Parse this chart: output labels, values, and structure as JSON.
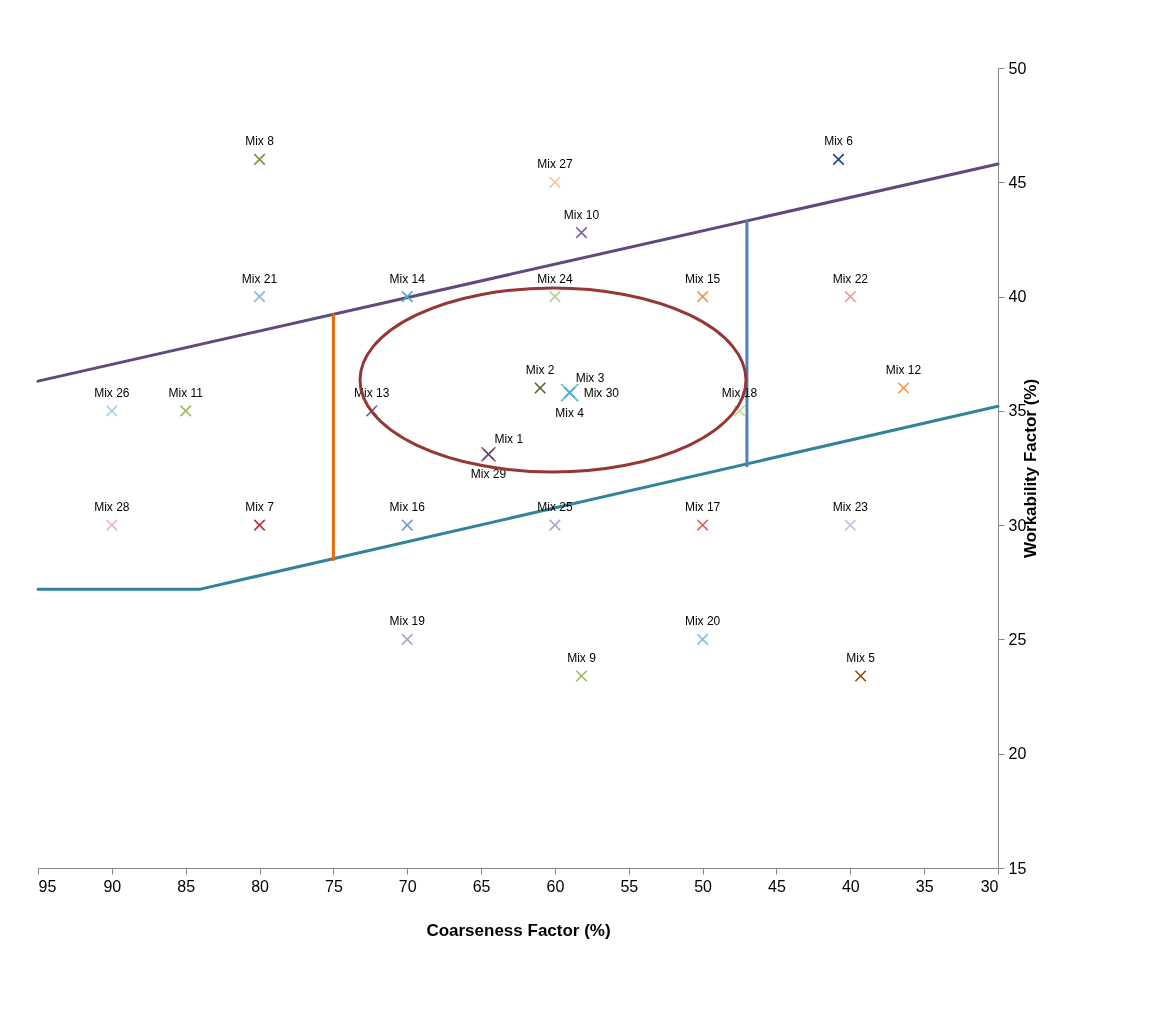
{
  "chart_data": {
    "type": "scatter",
    "xlabel": "Coarseness Factor (%)",
    "ylabel": "Workability Factor (%)",
    "xlim": [
      95,
      30
    ],
    "xticks": [
      95,
      90,
      85,
      80,
      75,
      70,
      65,
      60,
      55,
      50,
      45,
      40,
      35,
      30
    ],
    "ylim": [
      15,
      50
    ],
    "yticks": [
      15,
      20,
      25,
      30,
      35,
      40,
      45,
      50
    ],
    "grid": false,
    "legend": false,
    "marker": "cross",
    "series": [
      {
        "type": "line",
        "marker": "none",
        "color": "#604a7b",
        "x": [
          95,
          30
        ],
        "values": [
          36.3,
          45.8
        ]
      },
      {
        "type": "line",
        "marker": "none",
        "color": "#31849b",
        "x": [
          95,
          84,
          30
        ],
        "values": [
          27.2,
          27.2,
          35.2
        ]
      },
      {
        "type": "line",
        "marker": "none",
        "color": "#e46c0a",
        "x": [
          75,
          75
        ],
        "values": [
          28.5,
          39.2
        ]
      },
      {
        "type": "line",
        "marker": "none",
        "color": "#4f81bd",
        "x": [
          47,
          47
        ],
        "values": [
          32.6,
          43.3
        ]
      },
      {
        "name": "Mix 1",
        "color": "#604a7b",
        "x": [
          64.5
        ],
        "values": [
          33.1
        ]
      },
      {
        "name": "Mix 2",
        "color": "#4f6228",
        "x": [
          61
        ],
        "values": [
          36
        ]
      },
      {
        "name": "Mix 3",
        "color": "#4bacc6",
        "x": [
          59
        ],
        "values": [
          35.8
        ]
      },
      {
        "name": "Mix 4",
        "color": "#93cddd",
        "x": [
          59
        ],
        "values": [
          35.8
        ]
      },
      {
        "name": "Mix 5",
        "color": "#984807",
        "x": [
          39.3
        ],
        "values": [
          23.4
        ]
      },
      {
        "name": "Mix 6",
        "color": "#1f497d",
        "x": [
          40.8
        ],
        "values": [
          46
        ]
      },
      {
        "name": "Mix 7",
        "color": "#b83232",
        "x": [
          80
        ],
        "values": [
          30
        ]
      },
      {
        "name": "Mix 8",
        "color": "#77933c",
        "x": [
          80
        ],
        "values": [
          46
        ]
      },
      {
        "name": "Mix 9",
        "color": "#9bbb59",
        "x": [
          58.2
        ],
        "values": [
          23.4
        ]
      },
      {
        "name": "Mix 10",
        "color": "#8064a2",
        "x": [
          58.2
        ],
        "values": [
          42.8
        ]
      },
      {
        "name": "Mix 11",
        "color": "#9bbb59",
        "x": [
          85
        ],
        "values": [
          35
        ]
      },
      {
        "name": "Mix 12",
        "color": "#f79646",
        "x": [
          36.4
        ],
        "values": [
          36
        ]
      },
      {
        "name": "Mix 13",
        "color": "#8064a2",
        "x": [
          72.4
        ],
        "values": [
          35
        ]
      },
      {
        "name": "Mix 14",
        "color": "#4bacc6",
        "x": [
          70
        ],
        "values": [
          40
        ]
      },
      {
        "name": "Mix 15",
        "color": "#f79646",
        "x": [
          50
        ],
        "values": [
          40
        ]
      },
      {
        "name": "Mix 16",
        "color": "#7f96d9",
        "x": [
          70
        ],
        "values": [
          30
        ]
      },
      {
        "name": "Mix 17",
        "color": "#d06b6b",
        "x": [
          50
        ],
        "values": [
          30
        ]
      },
      {
        "name": "Mix 18",
        "color": "#c3d69b",
        "x": [
          47.5
        ],
        "values": [
          35
        ]
      },
      {
        "name": "Mix 19",
        "color": "#b3a2c7",
        "x": [
          70
        ],
        "values": [
          25
        ]
      },
      {
        "name": "Mix 20",
        "color": "#7fc4d6",
        "x": [
          50
        ],
        "values": [
          25
        ]
      },
      {
        "name": "Mix 21",
        "color": "#95b3d7",
        "x": [
          80
        ],
        "values": [
          40
        ]
      },
      {
        "name": "Mix 22",
        "color": "#e6a0a0",
        "x": [
          40
        ],
        "values": [
          40
        ]
      },
      {
        "name": "Mix 23",
        "color": "#ccc1da",
        "x": [
          40
        ],
        "values": [
          30
        ]
      },
      {
        "name": "Mix 24",
        "color": "#b6cf8a",
        "x": [
          60
        ],
        "values": [
          40
        ]
      },
      {
        "name": "Mix 25",
        "color": "#b3a2c7",
        "x": [
          60
        ],
        "values": [
          30
        ]
      },
      {
        "name": "Mix 26",
        "color": "#a6d2de",
        "x": [
          90
        ],
        "values": [
          35
        ]
      },
      {
        "name": "Mix 27",
        "color": "#fabf8f",
        "x": [
          60
        ],
        "values": [
          45
        ]
      },
      {
        "name": "Mix 28",
        "color": "#e6b9b8",
        "x": [
          90
        ],
        "values": [
          30
        ]
      },
      {
        "name": "Mix 29",
        "color": "#c0504d",
        "x": [
          64.5
        ],
        "values": [
          33.1
        ]
      },
      {
        "name": "Mix 30",
        "color": "#4bacc6",
        "x": [
          59
        ],
        "values": [
          35.8
        ]
      }
    ]
  }
}
